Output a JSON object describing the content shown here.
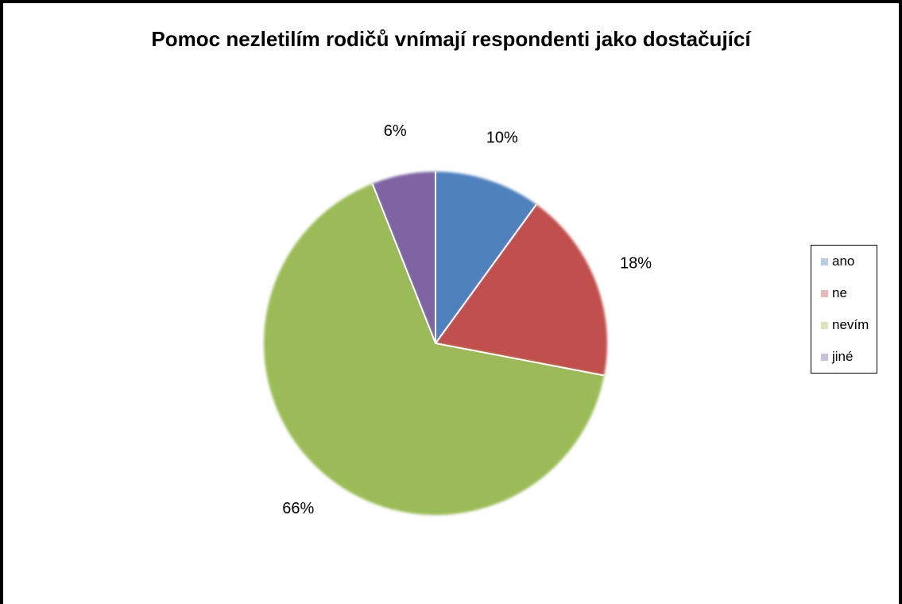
{
  "chart_data": {
    "type": "pie",
    "title": "Pomoc nezletilím rodičů vnímají respondenti jako dostačující",
    "slices": [
      {
        "label": "ano",
        "value": 10,
        "display": "10%",
        "color": "#4f81bd",
        "legend_color": "#b8cce4"
      },
      {
        "label": "ne",
        "value": 18,
        "display": "18%",
        "color": "#c0504d",
        "legend_color": "#e6b9b8"
      },
      {
        "label": "nevím",
        "value": 66,
        "display": "66%",
        "color": "#9bbb59",
        "legend_color": "#d7e4bd"
      },
      {
        "label": "jiné",
        "value": 6,
        "display": "6%",
        "color": "#8064a2",
        "legend_color": "#ccc1da"
      }
    ],
    "legend_position": "right"
  }
}
